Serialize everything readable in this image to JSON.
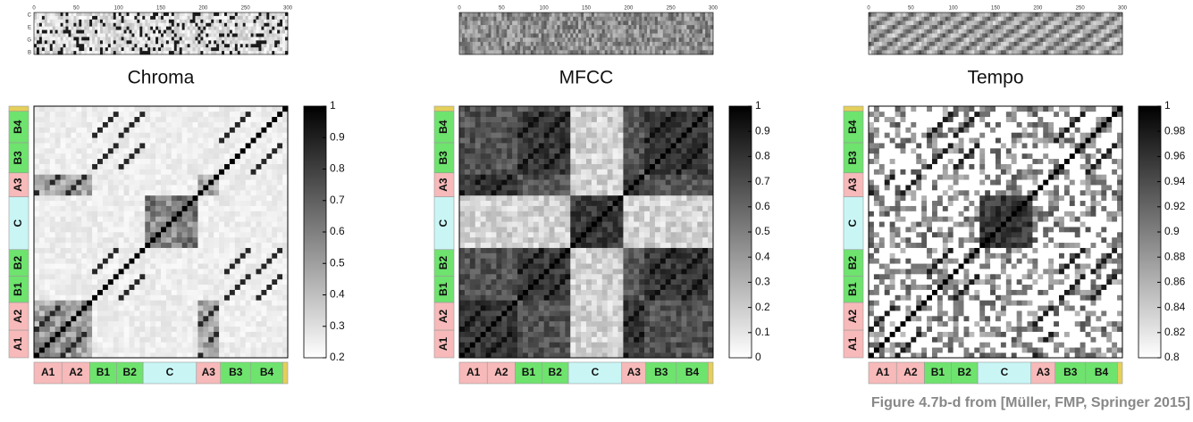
{
  "panels": [
    {
      "title": "Chroma",
      "feature_labels": [
        "C",
        "E",
        "G",
        "B"
      ],
      "feature_ticks": [
        0,
        50,
        100,
        150,
        200,
        250,
        300
      ],
      "colorbar_ticks": [
        1,
        0.9,
        0.8,
        0.7,
        0.6,
        0.5,
        0.4,
        0.3,
        0.2
      ],
      "segments": [
        "A1",
        "A2",
        "B1",
        "B2",
        "C",
        "A3",
        "B3",
        "B4"
      ]
    },
    {
      "title": "MFCC",
      "feature_ticks": [
        0,
        50,
        100,
        150,
        200,
        250,
        300
      ],
      "colorbar_ticks": [
        1,
        0.9,
        0.8,
        0.7,
        0.6,
        0.5,
        0.4,
        0.3,
        0.2,
        0.1,
        0
      ],
      "segments": [
        "A1",
        "A2",
        "B1",
        "B2",
        "C",
        "A3",
        "B3",
        "B4"
      ]
    },
    {
      "title": "Tempo",
      "feature_ticks": [
        0,
        50,
        100,
        150,
        200,
        250,
        300
      ],
      "colorbar_ticks": [
        1,
        0.98,
        0.96,
        0.94,
        0.92,
        0.9,
        0.88,
        0.86,
        0.84,
        0.82,
        0.8
      ],
      "segments": [
        "A1",
        "A2",
        "B1",
        "B2",
        "C",
        "A3",
        "B3",
        "B4"
      ]
    }
  ],
  "caption": "Figure 4.7b-d from [Müller, FMP, Springer 2015]"
}
